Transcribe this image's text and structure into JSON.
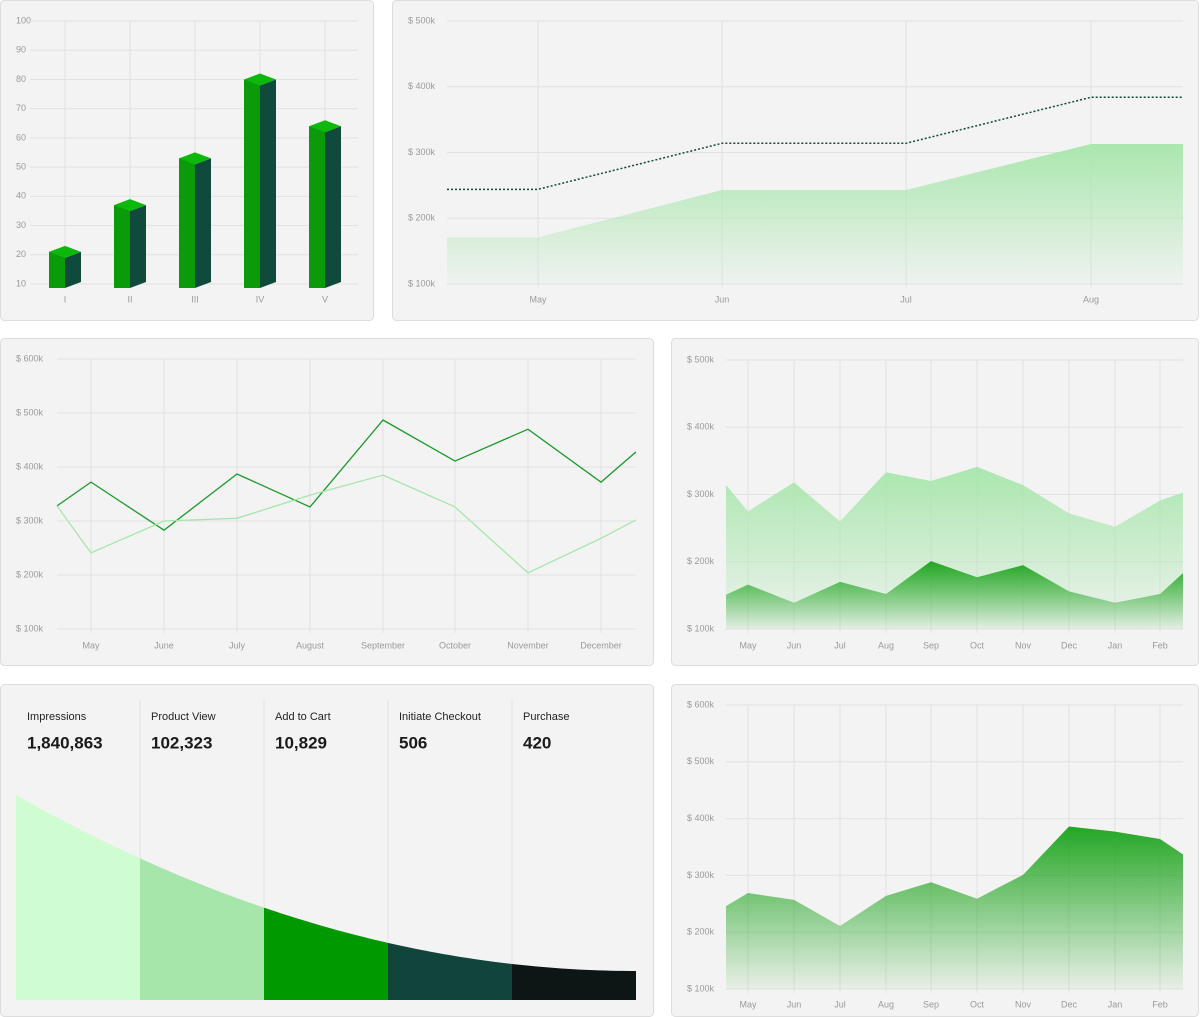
{
  "chart_data": [
    {
      "type": "bar",
      "categories": [
        "I",
        "II",
        "III",
        "IV",
        "V"
      ],
      "values": [
        21,
        37,
        53,
        80,
        64
      ],
      "color": "#0a9a0a",
      "side_color": "#0f4a3c",
      "ylim": [
        10,
        100
      ],
      "yticks": [
        10,
        20,
        30,
        40,
        50,
        60,
        70,
        80,
        90,
        100
      ],
      "grid": true
    },
    {
      "type": "area",
      "categories": [
        null,
        "May",
        "Jun",
        "Jul",
        "Aug",
        null
      ],
      "series": [
        {
          "type": "area",
          "color": "#a6e6aa",
          "values": [
            171,
            171,
            243,
            243,
            313,
            313
          ]
        },
        {
          "type": "line",
          "style": "dotted",
          "color": "#0f4a3c",
          "values": [
            244,
            244,
            314,
            314,
            384,
            384
          ]
        }
      ],
      "ylim": [
        100,
        500
      ],
      "yticks": [
        {
          "value": 100,
          "label": "$ 100k"
        },
        {
          "value": 200,
          "label": "$ 200k"
        },
        {
          "value": 300,
          "label": "$ 300k"
        },
        {
          "value": 400,
          "label": "$ 400k"
        },
        {
          "value": 500,
          "label": "$ 500k"
        }
      ],
      "grid": true,
      "tick_color": "#1a9a1a"
    },
    {
      "type": "line",
      "categories": [
        null,
        "May",
        "June",
        "July",
        "August",
        "September",
        "October",
        "November",
        "December",
        null
      ],
      "series": [
        {
          "color": "#1a9a2a",
          "values": [
            328,
            372,
            283,
            387,
            326,
            487,
            411,
            470,
            372,
            428
          ]
        },
        {
          "color": "#a6e6aa",
          "values": [
            328,
            241,
            300,
            305,
            348,
            385,
            326,
            204,
            268,
            302
          ]
        }
      ],
      "ylim": [
        100,
        600
      ],
      "yticks": [
        {
          "value": 100,
          "label": "$ 100k"
        },
        {
          "value": 200,
          "label": "$ 200k"
        },
        {
          "value": 300,
          "label": "$ 300k"
        },
        {
          "value": 400,
          "label": "$ 400k"
        },
        {
          "value": 500,
          "label": "$ 500k"
        },
        {
          "value": 600,
          "label": "$ 600k"
        }
      ],
      "grid": true
    },
    {
      "type": "area",
      "categories": [
        null,
        "May",
        "Jun",
        "Jul",
        "Aug",
        "Sep",
        "Oct",
        "Nov",
        "Dec",
        "Jan",
        "Feb",
        null
      ],
      "series": [
        {
          "color": "#a6e6aa",
          "values": [
            314,
            275,
            318,
            260,
            333,
            320,
            341,
            314,
            272,
            252,
            291,
            303
          ]
        },
        {
          "color": "#19a219",
          "values": [
            151,
            166,
            139,
            170,
            152,
            201,
            177,
            195,
            156,
            139,
            152,
            183
          ]
        }
      ],
      "ylim": [
        100,
        500
      ],
      "yticks": [
        {
          "value": 100,
          "label": "$ 100k"
        },
        {
          "value": 200,
          "label": "$ 200k"
        },
        {
          "value": 300,
          "label": "$ 300k"
        },
        {
          "value": 400,
          "label": "$ 400k"
        },
        {
          "value": 500,
          "label": "$ 500k"
        }
      ],
      "grid": true
    },
    {
      "type": "funnel",
      "categories": [
        "Impressions",
        "Product View",
        "Add to Cart",
        "Initiate Checkout",
        "Purchase"
      ],
      "values": [
        1840863,
        102323,
        10829,
        506,
        420
      ],
      "value_labels": [
        "1,840,863",
        "102,323",
        "10,829",
        "506",
        "420"
      ],
      "colors": [
        "#d0fcd2",
        "#a6e6aa",
        "#009a00",
        "#11443a",
        "#0c1614"
      ]
    },
    {
      "type": "area",
      "categories": [
        null,
        "May",
        "Jun",
        "Jul",
        "Aug",
        "Sep",
        "Oct",
        "Nov",
        "Dec",
        "Jan",
        "Feb",
        null
      ],
      "series": [
        {
          "color": "#19a219",
          "values": [
            246,
            269,
            257,
            211,
            264,
            288,
            259,
            301,
            386,
            377,
            364,
            337
          ]
        }
      ],
      "ylim": [
        100,
        600
      ],
      "yticks": [
        {
          "value": 100,
          "label": "$ 100k"
        },
        {
          "value": 200,
          "label": "$ 200k"
        },
        {
          "value": 300,
          "label": "$ 300k"
        },
        {
          "value": 400,
          "label": "$ 400k"
        },
        {
          "value": 500,
          "label": "$ 500k"
        },
        {
          "value": 600,
          "label": "$ 600k"
        }
      ],
      "grid": true
    }
  ]
}
